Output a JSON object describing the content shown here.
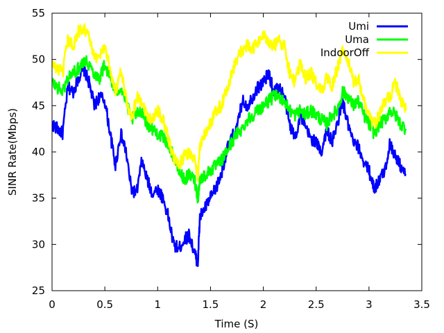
{
  "chart_data": {
    "type": "line",
    "title": "",
    "xlabel": "Time (S)",
    "ylabel": "SINR Rate(Mbps)",
    "xlim": [
      0,
      3.5
    ],
    "ylim": [
      25,
      55
    ],
    "xticks": [
      "0",
      "0.5",
      "1",
      "1.5",
      "2",
      "2.5",
      "3",
      "3.5"
    ],
    "yticks": [
      "25",
      "30",
      "35",
      "40",
      "45",
      "50",
      "55"
    ],
    "grid": false,
    "legend_position": "top-right",
    "series": [
      {
        "name": "Umi",
        "color": "#0000ff",
        "x": [
          0.0,
          0.05,
          0.1,
          0.15,
          0.2,
          0.25,
          0.3,
          0.35,
          0.4,
          0.45,
          0.5,
          0.55,
          0.6,
          0.65,
          0.7,
          0.75,
          0.8,
          0.85,
          0.9,
          0.95,
          1.0,
          1.05,
          1.1,
          1.15,
          1.2,
          1.25,
          1.3,
          1.35,
          1.38,
          1.4,
          1.45,
          1.5,
          1.55,
          1.6,
          1.65,
          1.7,
          1.75,
          1.8,
          1.85,
          1.9,
          1.95,
          2.0,
          2.05,
          2.1,
          2.15,
          2.2,
          2.25,
          2.3,
          2.35,
          2.4,
          2.45,
          2.5,
          2.55,
          2.6,
          2.65,
          2.7,
          2.75,
          2.8,
          2.85,
          2.9,
          2.95,
          3.0,
          3.05,
          3.1,
          3.15,
          3.2,
          3.25,
          3.3,
          3.35
        ],
        "y": [
          43,
          42.5,
          42,
          47,
          46.5,
          48,
          49,
          47.5,
          45,
          46,
          45.5,
          42,
          38.5,
          42,
          40,
          36,
          35.5,
          39,
          37,
          35.5,
          36,
          35,
          33,
          30,
          29.5,
          30.5,
          31,
          29,
          28,
          33,
          34,
          35,
          36,
          37.5,
          40,
          41.5,
          42.5,
          45.5,
          45,
          46,
          47,
          47.5,
          48.5,
          46.5,
          47,
          46,
          43,
          41.5,
          44,
          42.5,
          41.5,
          41,
          40,
          42.5,
          41,
          43,
          45.5,
          43,
          41,
          40.5,
          39,
          38,
          36,
          37,
          38,
          41,
          39.5,
          38.5,
          37.5
        ]
      },
      {
        "name": "Uma",
        "color": "#00ff00",
        "x": [
          0.0,
          0.05,
          0.1,
          0.15,
          0.2,
          0.25,
          0.3,
          0.35,
          0.4,
          0.45,
          0.5,
          0.55,
          0.6,
          0.65,
          0.7,
          0.75,
          0.8,
          0.85,
          0.9,
          0.95,
          1.0,
          1.05,
          1.1,
          1.15,
          1.2,
          1.25,
          1.3,
          1.35,
          1.38,
          1.4,
          1.45,
          1.5,
          1.55,
          1.6,
          1.65,
          1.7,
          1.75,
          1.8,
          1.85,
          1.9,
          1.95,
          2.0,
          2.05,
          2.1,
          2.15,
          2.2,
          2.25,
          2.3,
          2.35,
          2.4,
          2.45,
          2.5,
          2.55,
          2.6,
          2.65,
          2.7,
          2.75,
          2.8,
          2.85,
          2.9,
          2.95,
          3.0,
          3.05,
          3.1,
          3.15,
          3.2,
          3.25,
          3.3,
          3.35
        ],
        "y": [
          47.5,
          47,
          46.5,
          48,
          48.5,
          49,
          50,
          49.5,
          48.5,
          48,
          49.5,
          48,
          46.5,
          47,
          45.5,
          43.5,
          44,
          44.5,
          43,
          42.5,
          42,
          41.5,
          41,
          39.5,
          38,
          37,
          37.5,
          37,
          35,
          37,
          37.5,
          38,
          38.5,
          39,
          40,
          41,
          42,
          42.5,
          43.5,
          44,
          44.5,
          45,
          45.5,
          46,
          46,
          45.5,
          44.5,
          44,
          44.5,
          44,
          44.5,
          44,
          43.5,
          43,
          44,
          44.5,
          46.5,
          46,
          45,
          45.5,
          44,
          43,
          42,
          43,
          43.5,
          44.5,
          44,
          43,
          42.5
        ]
      },
      {
        "name": "IndoorOff",
        "color": "#ffff00",
        "x": [
          0.0,
          0.05,
          0.1,
          0.15,
          0.2,
          0.25,
          0.3,
          0.35,
          0.4,
          0.45,
          0.5,
          0.55,
          0.6,
          0.65,
          0.7,
          0.75,
          0.8,
          0.85,
          0.9,
          0.95,
          1.0,
          1.05,
          1.1,
          1.15,
          1.2,
          1.25,
          1.3,
          1.35,
          1.38,
          1.4,
          1.45,
          1.5,
          1.55,
          1.6,
          1.65,
          1.7,
          1.75,
          1.8,
          1.85,
          1.9,
          1.95,
          2.0,
          2.05,
          2.1,
          2.15,
          2.2,
          2.25,
          2.3,
          2.35,
          2.4,
          2.45,
          2.5,
          2.55,
          2.6,
          2.65,
          2.7,
          2.75,
          2.8,
          2.85,
          2.9,
          2.95,
          3.0,
          3.05,
          3.1,
          3.15,
          3.2,
          3.25,
          3.3,
          3.35
        ],
        "y": [
          49.5,
          49,
          48.5,
          52,
          51.5,
          53,
          53.5,
          52.5,
          50,
          50.5,
          51.5,
          49,
          46.5,
          48.5,
          46,
          43.5,
          46,
          45.5,
          44,
          43.5,
          44.5,
          43.5,
          41.5,
          39.5,
          38.5,
          39.5,
          40,
          39,
          37.5,
          40.5,
          42,
          43,
          44.5,
          45,
          46.5,
          48.5,
          50,
          51,
          51.5,
          51,
          52,
          52.5,
          52,
          51.5,
          52,
          51.5,
          48.5,
          47.5,
          49.5,
          48,
          48.5,
          47.5,
          46.5,
          48,
          47,
          49,
          51,
          50,
          47.5,
          48,
          45.5,
          44,
          43,
          44,
          45.5,
          46,
          47.5,
          45.5,
          44.5
        ]
      }
    ]
  }
}
